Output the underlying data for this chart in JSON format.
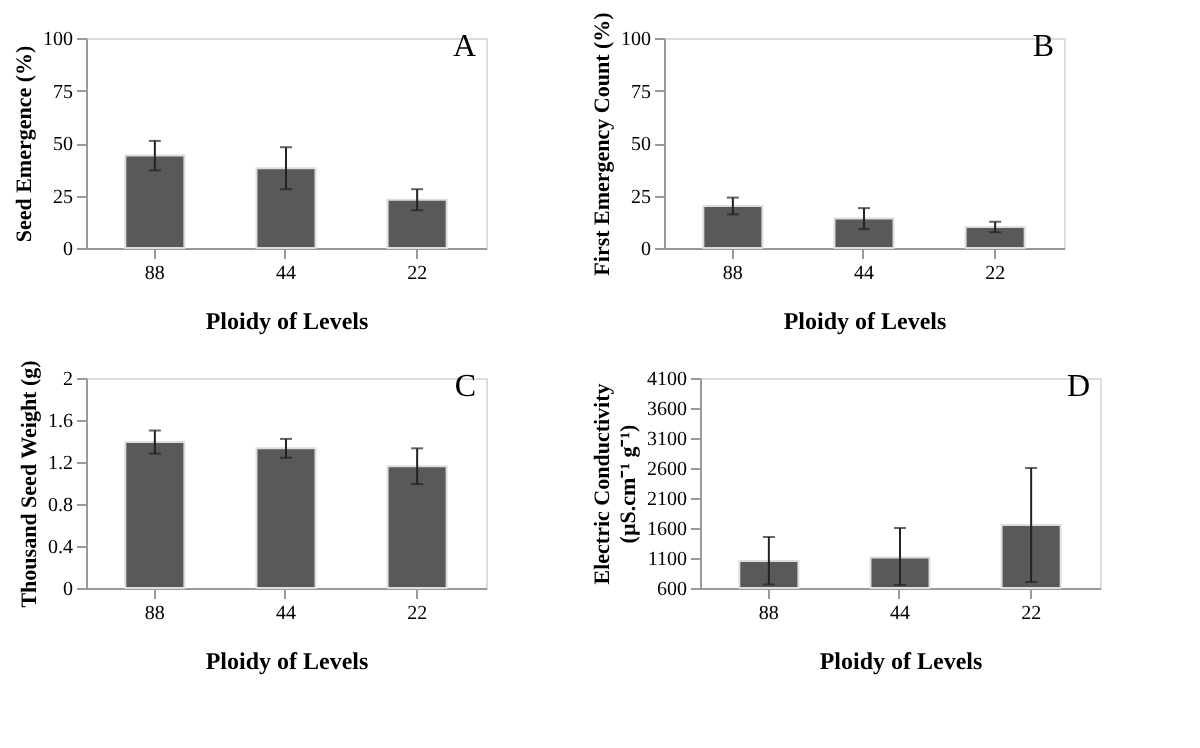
{
  "chart_data": [
    {
      "type": "bar",
      "categories": [
        "88",
        "44",
        "22"
      ],
      "values": [
        44,
        38,
        23
      ],
      "errors": [
        7,
        10,
        5
      ],
      "color": "#595959",
      "xlabel": "Ploidy of Levels",
      "ylabel": "Seed Emergence (%)",
      "ylim": [
        0,
        100
      ],
      "yticks": [
        0,
        25,
        50,
        75,
        100
      ],
      "annotations": [
        "A"
      ],
      "grid": false
    },
    {
      "type": "bar",
      "categories": [
        "88",
        "44",
        "22"
      ],
      "values": [
        20,
        14,
        10
      ],
      "errors": [
        4,
        5,
        2.5
      ],
      "color": "#595959",
      "xlabel": "Ploidy of Levels",
      "ylabel": "First Emergency Count (%)",
      "ylim": [
        0,
        100
      ],
      "yticks": [
        0,
        25,
        50,
        75,
        100
      ],
      "annotations": [
        "B"
      ],
      "grid": false
    },
    {
      "type": "bar",
      "categories": [
        "88",
        "44",
        "22"
      ],
      "values": [
        1.39,
        1.33,
        1.16
      ],
      "errors": [
        0.11,
        0.09,
        0.17
      ],
      "color": "#595959",
      "xlabel": "Ploidy of Levels",
      "ylabel": "Thousand Seed Weight (g)",
      "ylim": [
        0,
        2
      ],
      "yticks": [
        0,
        0.4,
        0.8,
        1.2,
        1.6,
        2
      ],
      "annotations": [
        "C"
      ],
      "grid": false
    },
    {
      "type": "bar",
      "categories": [
        "88",
        "44",
        "22"
      ],
      "values": [
        1050,
        1110,
        1650
      ],
      "errors": [
        [
          660,
          1450
        ],
        [
          650,
          1600
        ],
        [
          700,
          2600
        ]
      ],
      "color": "#595959",
      "xlabel": "Ploidy of Levels",
      "ylabel": "Electric Conductivity\n(µS.cm⁻¹ g⁻¹)",
      "ylim": [
        600,
        4100
      ],
      "yticks": [
        600,
        1100,
        1600,
        2100,
        2600,
        3100,
        3600,
        4100
      ],
      "annotations": [
        "D"
      ],
      "grid": false
    }
  ]
}
